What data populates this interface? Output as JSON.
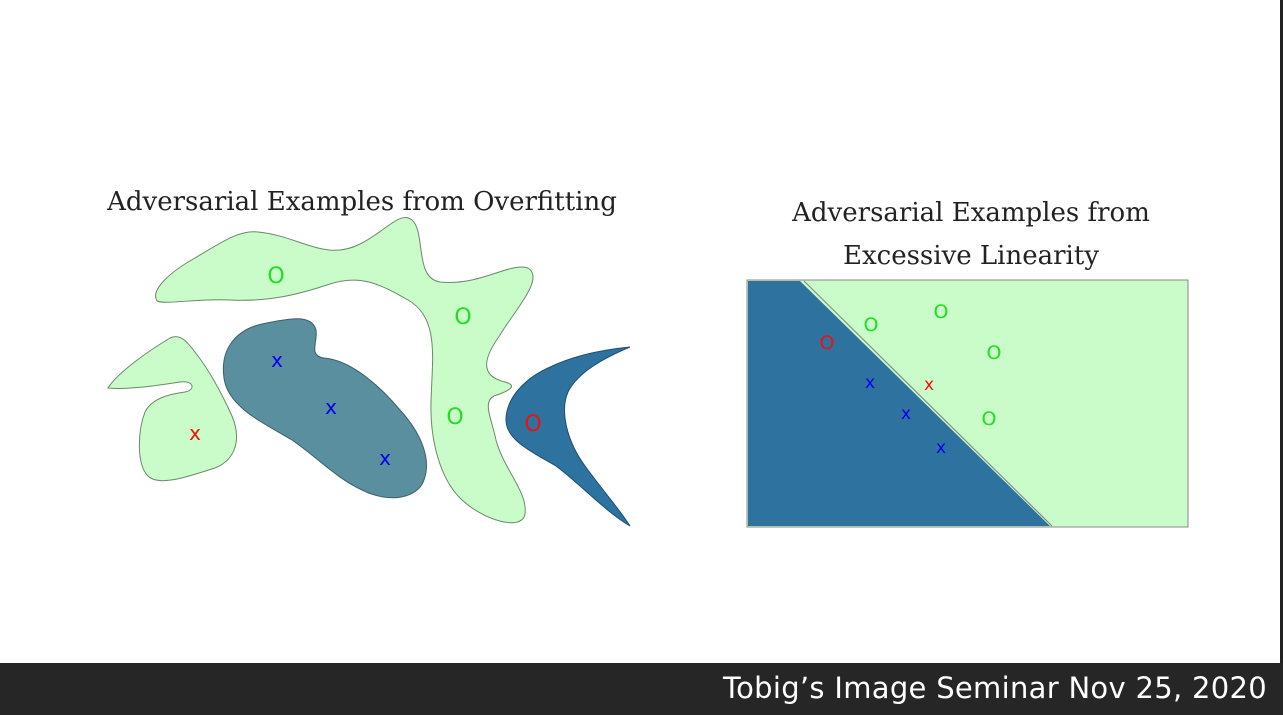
{
  "left_diagram": {
    "title": "Adversarial Examples from Overfitting",
    "x_marker": "x",
    "o_marker": "O"
  },
  "right_diagram": {
    "title_line1": "Adversarial Examples from",
    "title_line2": "Excessive Linearity",
    "x_marker": "x",
    "o_marker": "O"
  },
  "colors": {
    "light_green_region": "#c9fcc9",
    "teal_region": "#5a8fa0",
    "blue_region": "#2e72a0",
    "green_o": "#22dd22",
    "blue_x": "#0000ee",
    "red": "#ee1111"
  },
  "footer": {
    "text": "Tobig’s Image Seminar Nov 25, 2020"
  }
}
